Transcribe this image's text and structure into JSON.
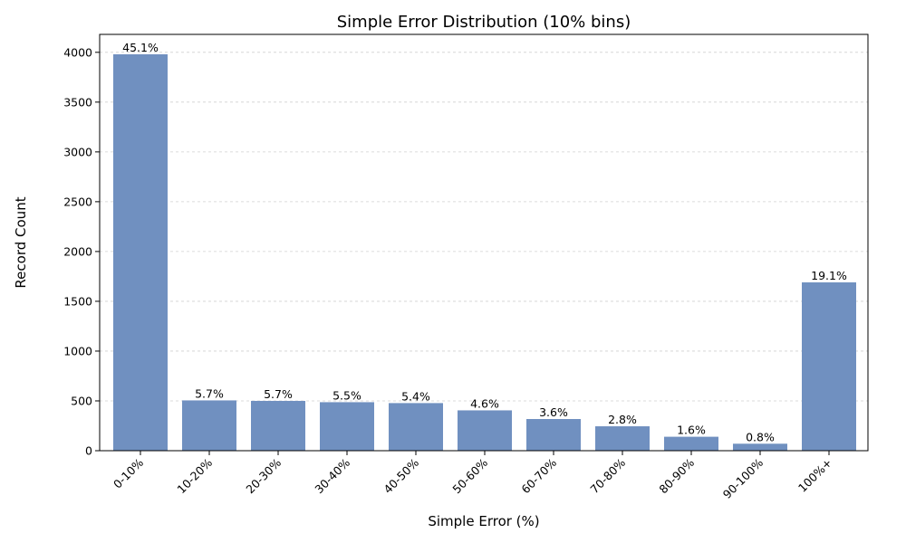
{
  "chart_data": {
    "type": "bar",
    "title": "Simple Error Distribution (10% bins)",
    "xlabel": "Simple Error (%)",
    "ylabel": "Record Count",
    "categories": [
      "0-10%",
      "10-20%",
      "20-30%",
      "30-40%",
      "40-50%",
      "50-60%",
      "60-70%",
      "70-80%",
      "80-90%",
      "90-100%",
      "100%+"
    ],
    "values": [
      3980,
      505,
      500,
      487,
      478,
      405,
      318,
      245,
      140,
      70,
      1690
    ],
    "data_labels": [
      "45.1%",
      "5.7%",
      "5.7%",
      "5.5%",
      "5.4%",
      "4.6%",
      "3.6%",
      "2.8%",
      "1.6%",
      "0.8%",
      "19.1%"
    ],
    "yticks": [
      0,
      500,
      1000,
      1500,
      2000,
      2500,
      3000,
      3500,
      4000
    ],
    "ylim": [
      0,
      4180
    ],
    "grid": true,
    "bar_color": "#7090c0"
  }
}
